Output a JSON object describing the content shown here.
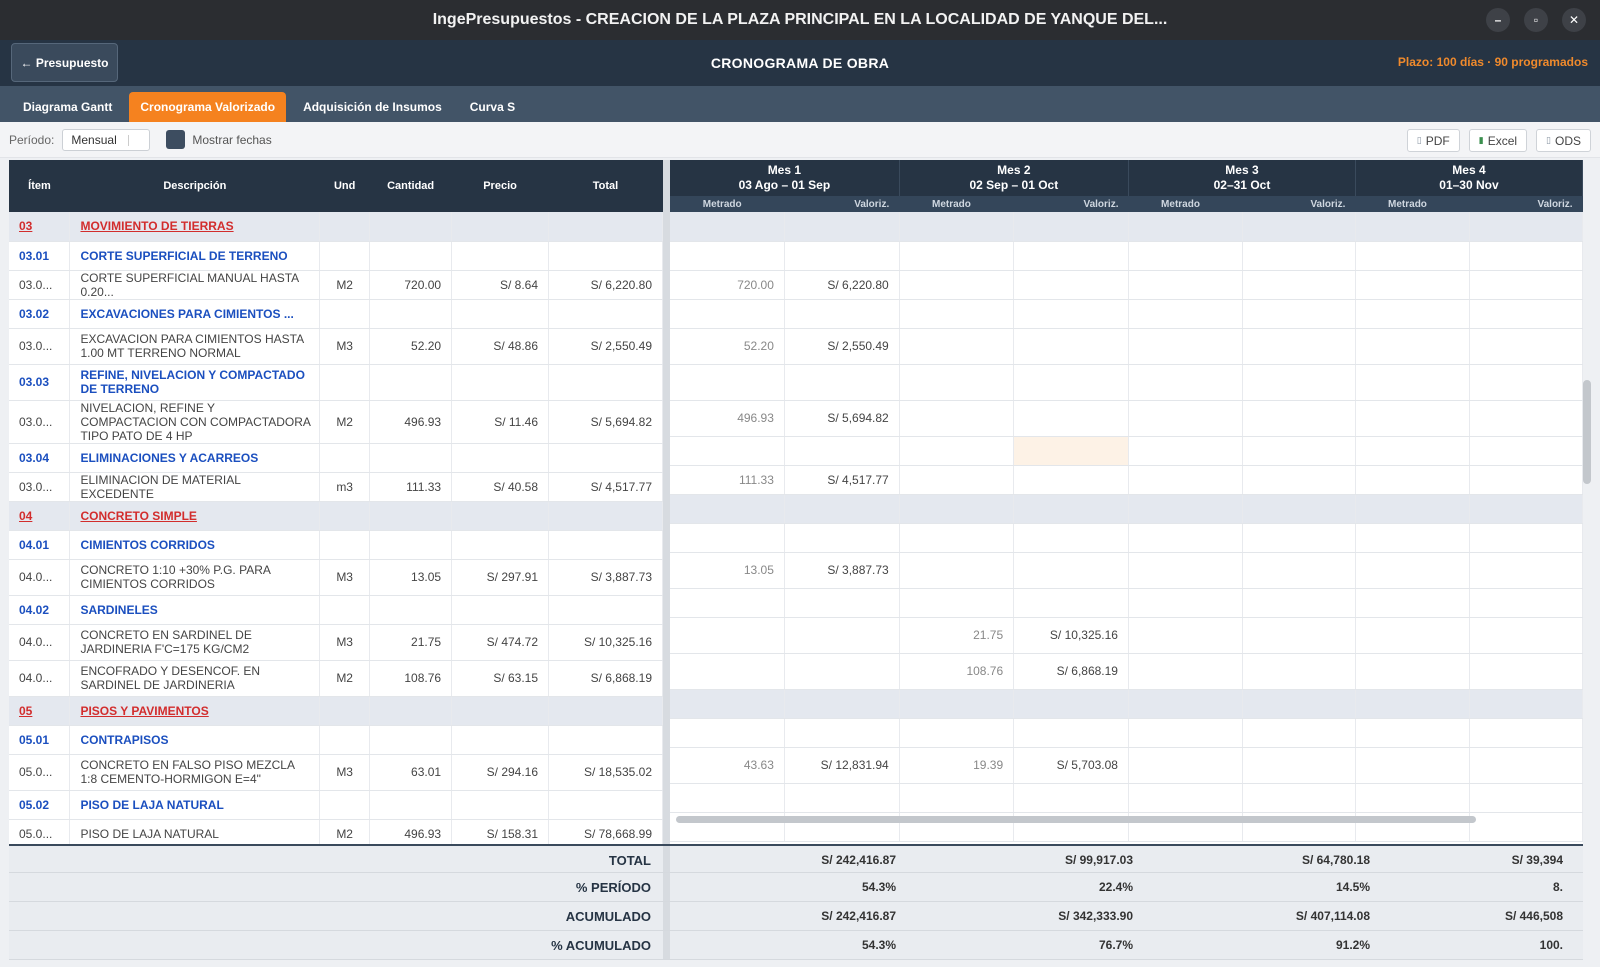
{
  "window": {
    "title": "IngePresupuestos  -  CREACION DE LA PLAZA PRINCIPAL EN LA LOCALIDAD DE YANQUE DEL..."
  },
  "header": {
    "back_label": "← Presupuesto",
    "title": "CRONOGRAMA DE OBRA",
    "plazo": "Plazo: 100 días  ·  90 programados"
  },
  "tabs": [
    {
      "label": "Diagrama Gantt"
    },
    {
      "label": "Cronograma Valorizado"
    },
    {
      "label": "Adquisición de Insumos"
    },
    {
      "label": "Curva S"
    }
  ],
  "toolbar": {
    "period_label": "Período:",
    "period_value": "Mensual",
    "show_dates_label": "Mostrar fechas",
    "pdf": "PDF",
    "excel": "Excel",
    "ods": "ODS"
  },
  "columns": {
    "item": "Ítem",
    "desc": "Descripción",
    "und": "Und",
    "cant": "Cantidad",
    "precio": "Precio",
    "total": "Total",
    "metrado": "Metrado",
    "valoriz": "Valoriz."
  },
  "months": [
    {
      "name": "Mes 1",
      "range": "03 Ago – 01 Sep"
    },
    {
      "name": "Mes 2",
      "range": "02 Sep – 01 Oct"
    },
    {
      "name": "Mes 3",
      "range": "02–31 Oct"
    },
    {
      "name": "Mes 4",
      "range": "01–30 Nov"
    }
  ],
  "rows": [
    {
      "type": "cat",
      "code": "03",
      "desc": "MOVIMIENTO DE TIERRAS",
      "und": "",
      "cant": "",
      "precio": "",
      "total": "",
      "m": [
        "",
        "",
        "",
        "",
        "",
        "",
        "",
        ""
      ]
    },
    {
      "type": "sub",
      "code": "03.01",
      "desc": "CORTE SUPERFICIAL DE TERRENO",
      "und": "",
      "cant": "",
      "precio": "",
      "total": "",
      "m": [
        "",
        "",
        "",
        "",
        "",
        "",
        "",
        ""
      ]
    },
    {
      "type": "item",
      "code": "03.0...",
      "desc": "CORTE SUPERFICIAL MANUAL HASTA 0.20...",
      "und": "M2",
      "cant": "720.00",
      "precio": "S/ 8.64",
      "total": "S/ 6,220.80",
      "m": [
        "720.00",
        "S/ 6,220.80",
        "",
        "",
        "",
        "",
        "",
        ""
      ]
    },
    {
      "type": "sub",
      "code": "03.02",
      "desc": "EXCAVACIONES PARA CIMIENTOS ...",
      "und": "",
      "cant": "",
      "precio": "",
      "total": "",
      "m": [
        "",
        "",
        "",
        "",
        "",
        "",
        "",
        ""
      ]
    },
    {
      "type": "item",
      "code": "03.0...",
      "desc": "EXCAVACION PARA CIMIENTOS HASTA 1.00 MT TERRENO NORMAL",
      "und": "M3",
      "cant": "52.20",
      "precio": "S/ 48.86",
      "total": "S/ 2,550.49",
      "m": [
        "52.20",
        "S/ 2,550.49",
        "",
        "",
        "",
        "",
        "",
        ""
      ]
    },
    {
      "type": "sub",
      "code": "03.03",
      "desc": "REFINE, NIVELACION Y COMPACTADO DE TERRENO",
      "und": "",
      "cant": "",
      "precio": "",
      "total": "",
      "m": [
        "",
        "",
        "",
        "",
        "",
        "",
        "",
        ""
      ]
    },
    {
      "type": "item",
      "code": "03.0...",
      "desc": "NIVELACION, REFINE Y COMPACTACION CON COMPACTADORA TIPO PATO DE 4 HP",
      "und": "M2",
      "cant": "496.93",
      "precio": "S/ 11.46",
      "total": "S/ 5,694.82",
      "m": [
        "496.93",
        "S/ 5,694.82",
        "",
        "",
        "",
        "",
        "",
        ""
      ]
    },
    {
      "type": "sub",
      "code": "03.04",
      "desc": "ELIMINACIONES Y ACARREOS",
      "und": "",
      "cant": "",
      "precio": "",
      "total": "",
      "m": [
        "",
        "",
        "",
        "",
        "",
        "",
        "",
        ""
      ],
      "hl": 3
    },
    {
      "type": "item",
      "code": "03.0...",
      "desc": "ELIMINACION DE MATERIAL EXCEDENTE",
      "und": "m3",
      "cant": "111.33",
      "precio": "S/ 40.58",
      "total": "S/ 4,517.77",
      "m": [
        "111.33",
        "S/ 4,517.77",
        "",
        "",
        "",
        "",
        "",
        ""
      ]
    },
    {
      "type": "cat",
      "code": "04",
      "desc": "CONCRETO SIMPLE",
      "und": "",
      "cant": "",
      "precio": "",
      "total": "",
      "m": [
        "",
        "",
        "",
        "",
        "",
        "",
        "",
        ""
      ]
    },
    {
      "type": "sub",
      "code": "04.01",
      "desc": "CIMIENTOS CORRIDOS",
      "und": "",
      "cant": "",
      "precio": "",
      "total": "",
      "m": [
        "",
        "",
        "",
        "",
        "",
        "",
        "",
        ""
      ]
    },
    {
      "type": "item",
      "code": "04.0...",
      "desc": "CONCRETO 1:10 +30% P.G. PARA CIMIENTOS CORRIDOS",
      "und": "M3",
      "cant": "13.05",
      "precio": "S/ 297.91",
      "total": "S/ 3,887.73",
      "m": [
        "13.05",
        "S/ 3,887.73",
        "",
        "",
        "",
        "",
        "",
        ""
      ]
    },
    {
      "type": "sub",
      "code": "04.02",
      "desc": "SARDINELES",
      "und": "",
      "cant": "",
      "precio": "",
      "total": "",
      "m": [
        "",
        "",
        "",
        "",
        "",
        "",
        "",
        ""
      ]
    },
    {
      "type": "item",
      "code": "04.0...",
      "desc": "CONCRETO EN SARDINEL DE JARDINERIA F'C=175 KG/CM2",
      "und": "M3",
      "cant": "21.75",
      "precio": "S/ 474.72",
      "total": "S/ 10,325.16",
      "m": [
        "",
        "",
        "21.75",
        "S/ 10,325.16",
        "",
        "",
        "",
        ""
      ]
    },
    {
      "type": "item",
      "code": "04.0...",
      "desc": "ENCOFRADO Y DESENCOF. EN SARDINEL DE JARDINERIA",
      "und": "M2",
      "cant": "108.76",
      "precio": "S/ 63.15",
      "total": "S/ 6,868.19",
      "m": [
        "",
        "",
        "108.76",
        "S/ 6,868.19",
        "",
        "",
        "",
        ""
      ]
    },
    {
      "type": "cat",
      "code": "05",
      "desc": "PISOS Y PAVIMENTOS",
      "und": "",
      "cant": "",
      "precio": "",
      "total": "",
      "m": [
        "",
        "",
        "",
        "",
        "",
        "",
        "",
        ""
      ]
    },
    {
      "type": "sub",
      "code": "05.01",
      "desc": "CONTRAPISOS",
      "und": "",
      "cant": "",
      "precio": "",
      "total": "",
      "m": [
        "",
        "",
        "",
        "",
        "",
        "",
        "",
        ""
      ]
    },
    {
      "type": "item",
      "code": "05.0...",
      "desc": "CONCRETO EN FALSO PISO MEZCLA 1:8 CEMENTO-HORMIGON E=4\"",
      "und": "M3",
      "cant": "63.01",
      "precio": "S/ 294.16",
      "total": "S/ 18,535.02",
      "m": [
        "43.63",
        "S/ 12,831.94",
        "19.39",
        "S/ 5,703.08",
        "",
        "",
        "",
        ""
      ]
    },
    {
      "type": "sub",
      "code": "05.02",
      "desc": "PISO DE LAJA NATURAL",
      "und": "",
      "cant": "",
      "precio": "",
      "total": "",
      "m": [
        "",
        "",
        "",
        "",
        "",
        "",
        "",
        ""
      ]
    },
    {
      "type": "item",
      "code": "05.0...",
      "desc": "PISO DE LAJA NATURAL",
      "und": "M2",
      "cant": "496.93",
      "precio": "S/ 158.31",
      "total": "S/ 78,668.99",
      "m": [
        "",
        "",
        "",
        "",
        "",
        "",
        "",
        ""
      ]
    }
  ],
  "footer": {
    "rows": [
      {
        "label": "TOTAL",
        "values": [
          "S/ 242,416.87",
          "S/ 99,917.03",
          "S/ 64,780.18",
          "S/ 39,394"
        ]
      },
      {
        "label": "% PERÍODO",
        "values": [
          "54.3%",
          "22.4%",
          "14.5%",
          "8."
        ]
      },
      {
        "label": "ACUMULADO",
        "values": [
          "S/ 242,416.87",
          "S/ 342,333.90",
          "S/ 407,114.08",
          "S/ 446,508"
        ]
      },
      {
        "label": "% ACUMULADO",
        "values": [
          "54.3%",
          "76.7%",
          "91.2%",
          "100."
        ]
      }
    ]
  },
  "colors": {
    "header_bg": "#263444",
    "accent_orange": "#f5821f",
    "category_red": "#d22d2d",
    "subcategory_blue": "#1b4fbf"
  }
}
